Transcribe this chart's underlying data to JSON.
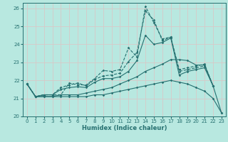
{
  "xlabel": "Humidex (Indice chaleur)",
  "bg_color": "#b8e8e0",
  "grid_color": "#d8c8c8",
  "line_color": "#267070",
  "xlim": [
    -0.5,
    23.5
  ],
  "ylim": [
    20.0,
    26.3
  ],
  "yticks": [
    20,
    21,
    22,
    23,
    24,
    25,
    26
  ],
  "xticks": [
    0,
    1,
    2,
    3,
    4,
    5,
    6,
    7,
    8,
    9,
    10,
    11,
    12,
    13,
    14,
    15,
    16,
    17,
    18,
    19,
    20,
    21,
    22,
    23
  ],
  "lines": [
    {
      "x": [
        0,
        1,
        2,
        3,
        4,
        5,
        6,
        7,
        8,
        9,
        10,
        11,
        12,
        13,
        14,
        15,
        16,
        17,
        18,
        19,
        20,
        21,
        22
      ],
      "y": [
        21.8,
        21.1,
        21.2,
        21.2,
        21.2,
        21.85,
        21.75,
        21.75,
        22.1,
        22.55,
        22.5,
        22.6,
        23.8,
        23.3,
        26.1,
        25.2,
        24.3,
        24.4,
        22.6,
        22.7,
        22.8,
        22.9,
        21.7
      ]
    },
    {
      "x": [
        0,
        1,
        2,
        3,
        4,
        5,
        6,
        7,
        8,
        9,
        10,
        11,
        12,
        13,
        14,
        15,
        16,
        17,
        18,
        19,
        20,
        21,
        22
      ],
      "y": [
        21.8,
        21.1,
        21.2,
        21.2,
        21.6,
        21.75,
        21.85,
        21.7,
        22.05,
        22.25,
        22.3,
        22.4,
        23.05,
        23.55,
        25.85,
        25.35,
        24.2,
        24.4,
        22.5,
        22.6,
        22.7,
        22.8,
        21.7
      ]
    },
    {
      "x": [
        0,
        1,
        2,
        3,
        4,
        5,
        6,
        7,
        8,
        9,
        10,
        11,
        12,
        13,
        14,
        15,
        16,
        17,
        18,
        19,
        20,
        21,
        22
      ],
      "y": [
        21.8,
        21.1,
        21.2,
        21.2,
        21.5,
        21.6,
        21.65,
        21.6,
        21.9,
        22.1,
        22.1,
        22.2,
        22.5,
        23.1,
        24.5,
        24.0,
        24.1,
        24.35,
        22.3,
        22.5,
        22.6,
        22.7,
        21.7
      ]
    },
    {
      "x": [
        0,
        1,
        2,
        3,
        4,
        5,
        6,
        7,
        8,
        9,
        10,
        11,
        12,
        13,
        14,
        15,
        16,
        17,
        18,
        19,
        20,
        21,
        22,
        23
      ],
      "y": [
        21.8,
        21.1,
        21.1,
        21.1,
        21.2,
        21.2,
        21.2,
        21.3,
        21.4,
        21.5,
        21.6,
        21.8,
        22.0,
        22.2,
        22.5,
        22.7,
        22.9,
        23.15,
        23.15,
        23.1,
        22.85,
        22.85,
        21.7,
        20.2
      ]
    },
    {
      "x": [
        0,
        1,
        2,
        3,
        4,
        5,
        6,
        7,
        8,
        9,
        10,
        11,
        12,
        13,
        14,
        15,
        16,
        17,
        18,
        19,
        20,
        21,
        22,
        23
      ],
      "y": [
        21.8,
        21.1,
        21.1,
        21.1,
        21.1,
        21.1,
        21.1,
        21.1,
        21.2,
        21.2,
        21.3,
        21.4,
        21.5,
        21.6,
        21.7,
        21.8,
        21.9,
        22.0,
        21.9,
        21.8,
        21.6,
        21.4,
        21.0,
        20.2
      ]
    }
  ]
}
